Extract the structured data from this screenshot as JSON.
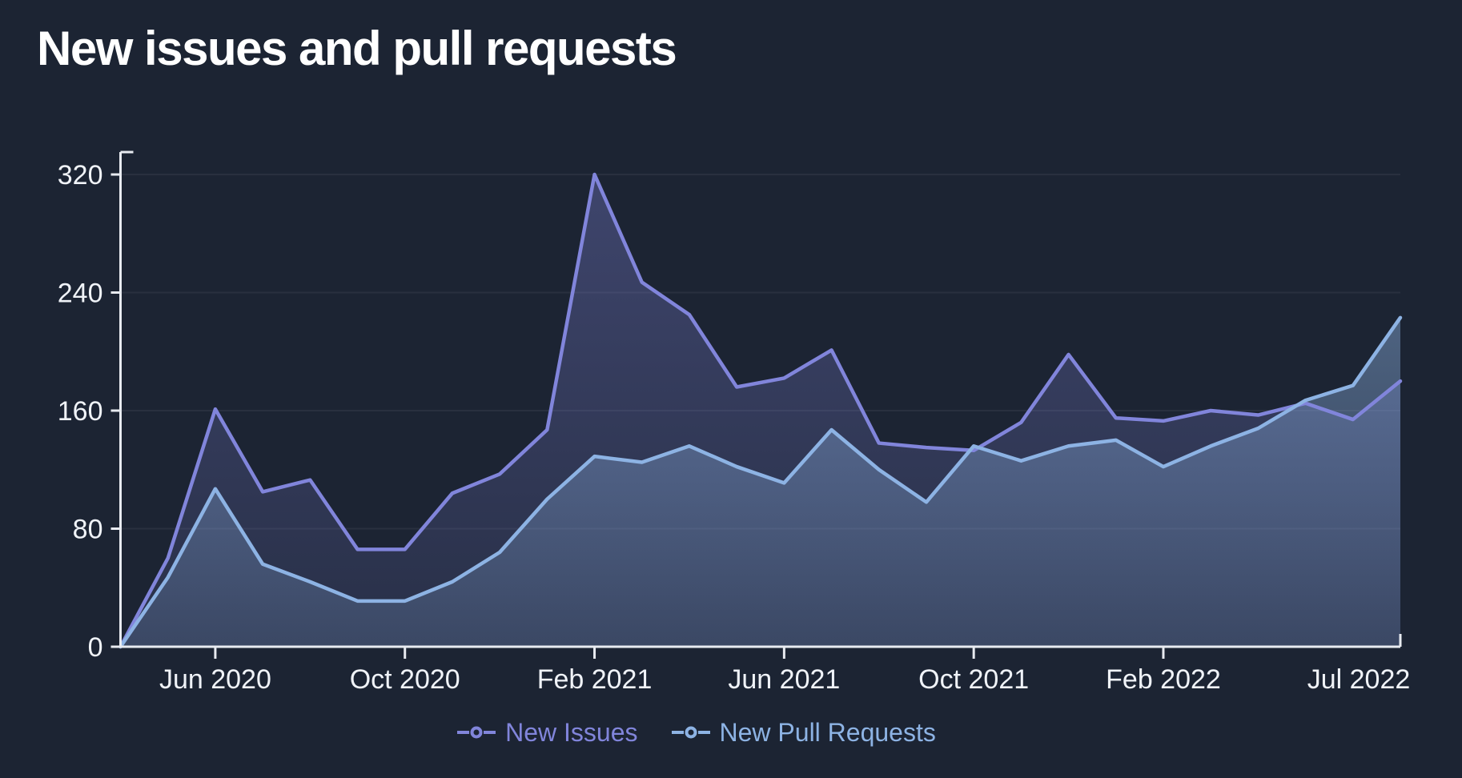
{
  "title": "New issues and pull requests",
  "colors": {
    "background": "#1c2433",
    "title_text": "#ffffff",
    "axis_line": "#e8ebf1",
    "axis_text": "#f0f3f8",
    "grid_line": "rgba(255,255,255,0.06)",
    "issues_accent": "#8185db",
    "pull_requests_accent": "#8db3e4"
  },
  "legend": {
    "items": [
      {
        "label": "New Issues",
        "color": "#8185db"
      },
      {
        "label": "New Pull Requests",
        "color": "#8db3e4"
      }
    ]
  },
  "chart_data": {
    "type": "area",
    "title": "New issues and pull requests",
    "xlabel": "",
    "ylabel": "",
    "ylim": [
      0,
      320
    ],
    "y_ticks": [
      0,
      80,
      160,
      240,
      320
    ],
    "grid": true,
    "legend_position": "bottom",
    "x": [
      "Apr 2020",
      "May 2020",
      "Jun 2020",
      "Jul 2020",
      "Aug 2020",
      "Sep 2020",
      "Oct 2020",
      "Nov 2020",
      "Dec 2020",
      "Jan 2021",
      "Feb 2021",
      "Mar 2021",
      "Apr 2021",
      "May 2021",
      "Jun 2021",
      "Jul 2021",
      "Aug 2021",
      "Sep 2021",
      "Oct 2021",
      "Nov 2021",
      "Dec 2021",
      "Jan 2022",
      "Feb 2022",
      "Mar 2022",
      "Apr 2022",
      "May 2022",
      "Jun 2022",
      "Jul 2022"
    ],
    "x_tick_labels": [
      {
        "label": "Jun 2020",
        "index": 2,
        "shift": 0
      },
      {
        "label": "Oct 2020",
        "index": 6,
        "shift": 0
      },
      {
        "label": "Feb 2021",
        "index": 10,
        "shift": 0
      },
      {
        "label": "Jun 2021",
        "index": 14,
        "shift": 0
      },
      {
        "label": "Oct 2021",
        "index": 18,
        "shift": 0
      },
      {
        "label": "Feb 2022",
        "index": 22,
        "shift": 0
      },
      {
        "label": "Jul 2022",
        "index": 27,
        "shift": -52
      }
    ],
    "series": [
      {
        "name": "New Issues",
        "color": "#8185db",
        "values": [
          0,
          60,
          161,
          105,
          113,
          66,
          66,
          104,
          117,
          147,
          320,
          247,
          225,
          176,
          182,
          201,
          138,
          135,
          133,
          152,
          198,
          155,
          153,
          160,
          157,
          165,
          154,
          180
        ]
      },
      {
        "name": "New Pull Requests",
        "color": "#8db3e4",
        "values": [
          0,
          47,
          107,
          56,
          44,
          31,
          31,
          44,
          64,
          100,
          129,
          125,
          136,
          122,
          111,
          147,
          120,
          98,
          136,
          126,
          136,
          140,
          122,
          136,
          148,
          167,
          177,
          223
        ]
      }
    ]
  }
}
